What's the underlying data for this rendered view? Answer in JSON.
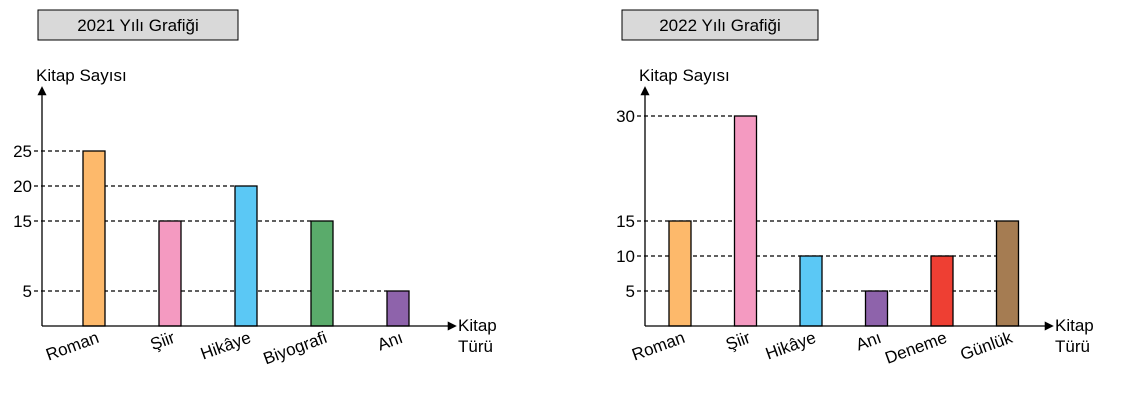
{
  "chart_data": [
    {
      "type": "bar",
      "title": "2021 Yılı Grafiği",
      "y_label": "Kitap Sayısı",
      "x_label": "Kitap Türü",
      "categories": [
        "Roman",
        "Şiir",
        "Hikâye",
        "Biyografi",
        "Anı"
      ],
      "values": [
        25,
        15,
        20,
        15,
        5
      ],
      "colors": [
        "#fdb96b",
        "#f49ac1",
        "#5bc8f5",
        "#5aab6b",
        "#8e63ab"
      ],
      "ylim": [
        0,
        34
      ],
      "yticks": [
        5,
        15,
        20,
        25
      ]
    },
    {
      "type": "bar",
      "title": "2022 Yılı Grafiği",
      "y_label": "Kitap Sayısı",
      "x_label": "Kitap Türü",
      "categories": [
        "Roman",
        "Şiir",
        "Hikâye",
        "Anı",
        "Deneme",
        "Günlük"
      ],
      "values": [
        15,
        30,
        10,
        5,
        10,
        15
      ],
      "colors": [
        "#fdb96b",
        "#f49ac1",
        "#5bc8f5",
        "#8e63ab",
        "#ee3f33",
        "#a57c52"
      ],
      "ylim": [
        0,
        34
      ],
      "yticks": [
        5,
        10,
        15,
        30
      ]
    }
  ]
}
